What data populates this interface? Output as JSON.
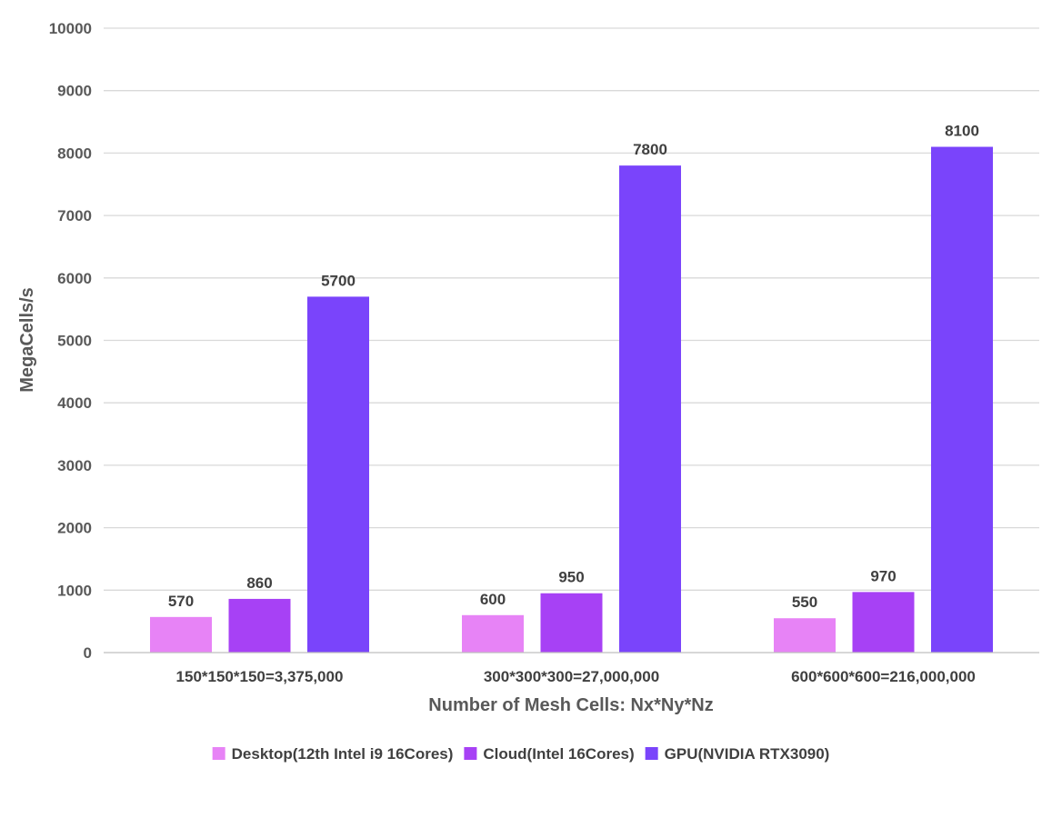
{
  "chart_data": {
    "type": "bar",
    "title": "",
    "xlabel": "Number of Mesh Cells: Nx*Ny*Nz",
    "ylabel": "MegaCells/s",
    "ylim": [
      0,
      10000
    ],
    "yticks": [
      0,
      1000,
      2000,
      3000,
      4000,
      5000,
      6000,
      7000,
      8000,
      9000,
      10000
    ],
    "grid": true,
    "legend_position": "bottom",
    "categories": [
      "150*150*150=3,375,000",
      "300*300*300=27,000,000",
      "600*600*600=216,000,000"
    ],
    "series": [
      {
        "name": "Desktop(12th Intel i9 16Cores)",
        "color": "#E783F6",
        "values": [
          570,
          600,
          550
        ]
      },
      {
        "name": "Cloud(Intel 16Cores)",
        "color": "#A741F5",
        "values": [
          860,
          950,
          970
        ]
      },
      {
        "name": "GPU(NVIDIA RTX3090)",
        "color": "#7A44FB",
        "values": [
          5700,
          7800,
          8100
        ]
      }
    ]
  }
}
